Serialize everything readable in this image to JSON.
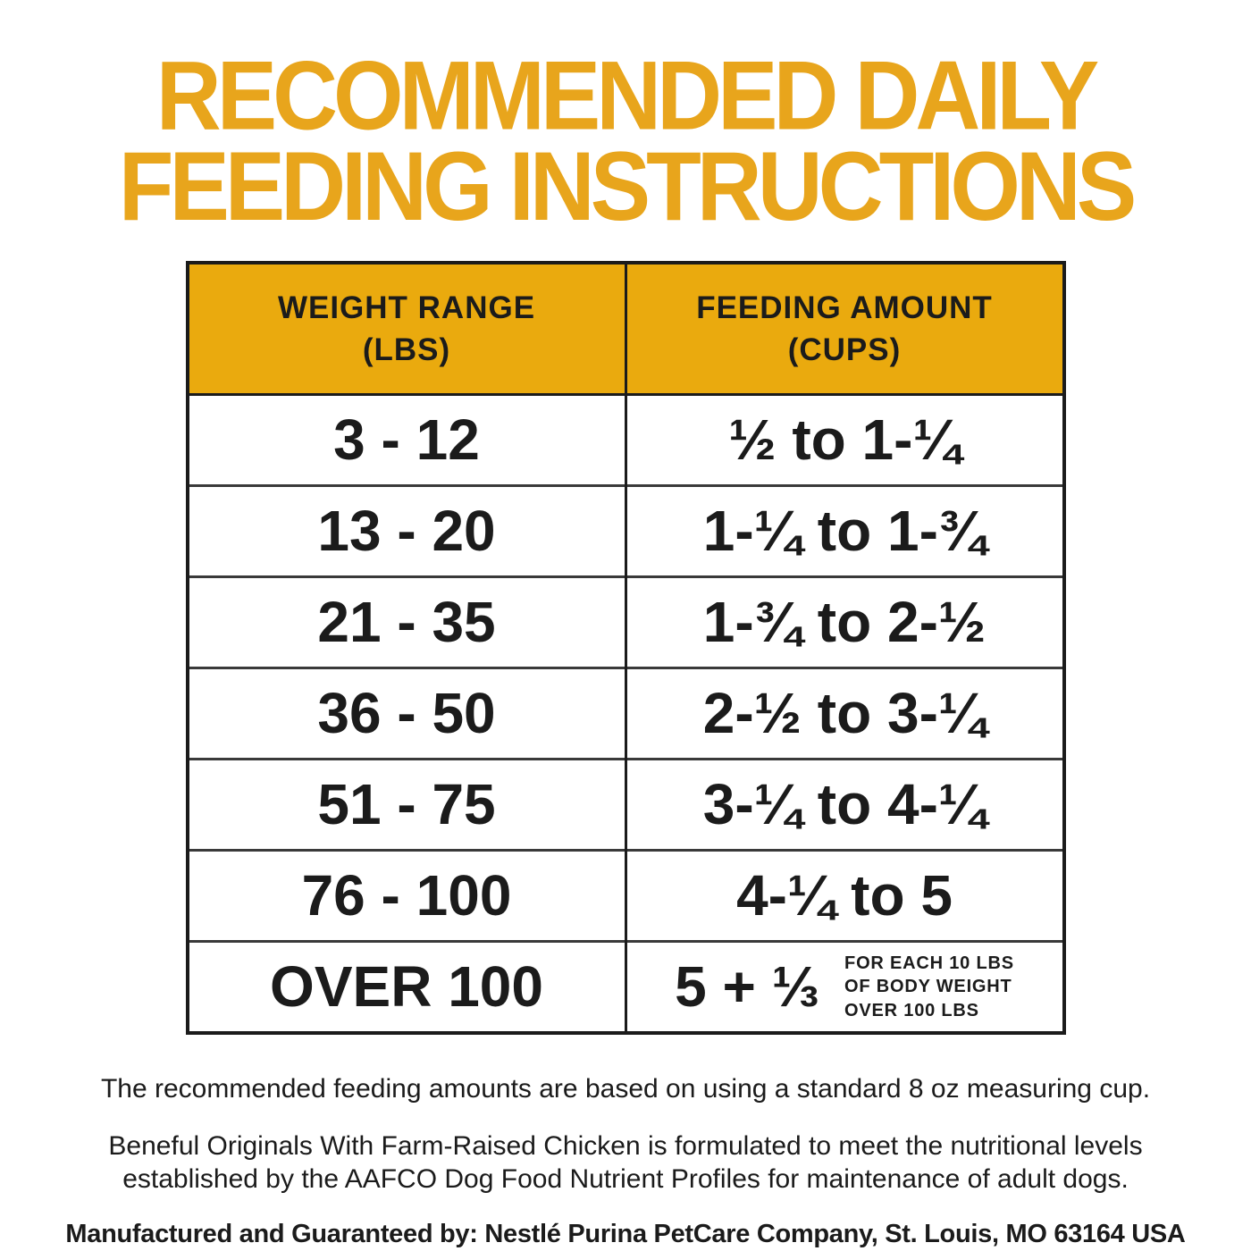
{
  "title": {
    "line1": "RECOMMENDED DAILY",
    "line2": "FEEDING INSTRUCTIONS"
  },
  "colors": {
    "title_gold": "#e8a51c",
    "header_gold": "#eaaa0e",
    "text_black": "#1b1b1b"
  },
  "table": {
    "headers": [
      {
        "line1": "WEIGHT RANGE",
        "line2": "(LBS)"
      },
      {
        "line1": "FEEDING AMOUNT",
        "line2": "(CUPS)"
      }
    ],
    "rows": [
      {
        "weight": "3 - 12",
        "amount": "½ to 1-¼"
      },
      {
        "weight": "13 - 20",
        "amount": "1-¼ to 1-¾"
      },
      {
        "weight": "21 - 35",
        "amount": "1-¾ to 2-½"
      },
      {
        "weight": "36 - 50",
        "amount": "2-½ to 3-¼"
      },
      {
        "weight": "51 - 75",
        "amount": "3-¼ to 4-¼"
      },
      {
        "weight": "76 - 100",
        "amount": "4-¼ to 5"
      },
      {
        "weight": "OVER 100",
        "amount": "5 + ⅓",
        "note_lines": [
          "FOR EACH 10 LBS",
          "OF BODY WEIGHT",
          "OVER 100 LBS"
        ]
      }
    ]
  },
  "footnotes": {
    "measuring_cup": "The recommended feeding amounts are based on using a standard 8 oz measuring cup.",
    "aafco": "Beneful Originals With Farm-Raised Chicken is formulated to meet the nutritional levels established by the AAFCO Dog Food Nutrient Profiles for maintenance of adult dogs.",
    "manufacturer": "Manufactured and Guaranteed by: Nestlé Purina PetCare Company, St. Louis, MO 63164 USA"
  }
}
